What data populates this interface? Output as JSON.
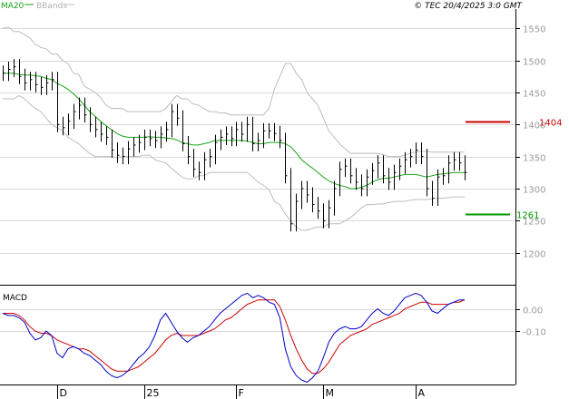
{
  "chart_data": [
    {
      "type": "line",
      "panel": "price",
      "legend": [
        {
          "name": "MA20",
          "color": "#1aa31a"
        },
        {
          "name": "BBands",
          "color": "#b0b0b0"
        }
      ],
      "copyright": "© TEC 20/4/2025 3:0 GMT",
      "y_ticks": [
        "1550",
        "1500",
        "1450",
        "1400",
        "1350",
        "1300",
        "1250",
        "1200"
      ],
      "ylim": [
        1150,
        1580
      ],
      "x_labels": [
        "D",
        "25",
        "F",
        "M",
        "A"
      ],
      "x_label_index": [
        10,
        26,
        43,
        59,
        76
      ],
      "n_bars": 86,
      "close": [
        1480,
        1486,
        1490,
        1475,
        1465,
        1470,
        1462,
        1458,
        1465,
        1470,
        1400,
        1395,
        1405,
        1420,
        1430,
        1415,
        1400,
        1392,
        1385,
        1380,
        1360,
        1352,
        1350,
        1362,
        1368,
        1372,
        1380,
        1378,
        1375,
        1385,
        1392,
        1420,
        1410,
        1370,
        1350,
        1330,
        1325,
        1345,
        1350,
        1372,
        1380,
        1385,
        1378,
        1392,
        1385,
        1400,
        1370,
        1375,
        1390,
        1390,
        1386,
        1375,
        1320,
        1245,
        1280,
        1300,
        1290,
        1275,
        1265,
        1250,
        1270,
        1300,
        1330,
        1335,
        1320,
        1310,
        1300,
        1318,
        1328,
        1340,
        1320,
        1310,
        1325,
        1335,
        1345,
        1350,
        1360,
        1350,
        1300,
        1285,
        1318,
        1320,
        1340,
        1345,
        1340,
        1325
      ],
      "ma20": [
        1480,
        1480,
        1480,
        1478,
        1477,
        1477,
        1476,
        1475,
        1472,
        1470,
        1464,
        1460,
        1455,
        1448,
        1440,
        1430,
        1420,
        1413,
        1405,
        1398,
        1392,
        1386,
        1382,
        1380,
        1380,
        1380,
        1380,
        1381,
        1380,
        1380,
        1379,
        1378,
        1376,
        1372,
        1370,
        1368,
        1368,
        1370,
        1372,
        1375,
        1375,
        1375,
        1375,
        1375,
        1375,
        1374,
        1372,
        1370,
        1370,
        1372,
        1372,
        1372,
        1370,
        1365,
        1356,
        1345,
        1338,
        1332,
        1325,
        1318,
        1312,
        1308,
        1305,
        1303,
        1300,
        1300,
        1302,
        1305,
        1310,
        1314,
        1316,
        1316,
        1318,
        1320,
        1322,
        1322,
        1322,
        1320,
        1318,
        1320,
        1322,
        1323,
        1324,
        1325,
        1325,
        1325
      ],
      "bb_upper": [
        1550,
        1552,
        1545,
        1545,
        1540,
        1535,
        1525,
        1520,
        1518,
        1510,
        1510,
        1500,
        1495,
        1480,
        1478,
        1460,
        1455,
        1450,
        1442,
        1430,
        1425,
        1425,
        1425,
        1420,
        1420,
        1420,
        1420,
        1420,
        1420,
        1420,
        1425,
        1435,
        1445,
        1440,
        1440,
        1432,
        1430,
        1425,
        1420,
        1420,
        1418,
        1418,
        1415,
        1415,
        1415,
        1415,
        1415,
        1415,
        1415,
        1425,
        1455,
        1475,
        1495,
        1495,
        1480,
        1470,
        1450,
        1440,
        1430,
        1410,
        1390,
        1380,
        1370,
        1362,
        1355,
        1355,
        1355,
        1355,
        1355,
        1355,
        1353,
        1350,
        1350,
        1350,
        1352,
        1355,
        1357,
        1358,
        1358,
        1357,
        1357,
        1357,
        1357,
        1357,
        1357,
        1357
      ],
      "bb_lower": [
        1440,
        1440,
        1440,
        1445,
        1440,
        1432,
        1425,
        1420,
        1410,
        1400,
        1395,
        1390,
        1380,
        1375,
        1370,
        1362,
        1355,
        1350,
        1350,
        1350,
        1350,
        1348,
        1350,
        1350,
        1350,
        1350,
        1352,
        1352,
        1345,
        1342,
        1340,
        1332,
        1325,
        1318,
        1315,
        1315,
        1320,
        1320,
        1325,
        1325,
        1325,
        1325,
        1325,
        1325,
        1325,
        1325,
        1318,
        1310,
        1305,
        1298,
        1280,
        1275,
        1260,
        1250,
        1240,
        1235,
        1235,
        1238,
        1240,
        1240,
        1245,
        1245,
        1245,
        1250,
        1255,
        1262,
        1270,
        1275,
        1275,
        1276,
        1276,
        1278,
        1280,
        1280,
        1280,
        1282,
        1283,
        1283,
        1283,
        1284,
        1285,
        1285,
        1286,
        1287,
        1287,
        1287
      ],
      "levels": [
        {
          "value": "1404",
          "color": "#cc0000"
        },
        {
          "value": "1261",
          "color": "#009900"
        }
      ]
    },
    {
      "type": "line",
      "panel": "macd",
      "title": "MACD",
      "y_ticks": [
        "0.00",
        "-0.10"
      ],
      "ylim": [
        -0.34,
        0.1
      ],
      "macd": [
        -0.02,
        -0.03,
        -0.03,
        -0.04,
        -0.06,
        -0.11,
        -0.14,
        -0.13,
        -0.1,
        -0.12,
        -0.2,
        -0.22,
        -0.18,
        -0.17,
        -0.18,
        -0.2,
        -0.21,
        -0.23,
        -0.25,
        -0.28,
        -0.3,
        -0.31,
        -0.3,
        -0.28,
        -0.25,
        -0.22,
        -0.2,
        -0.17,
        -0.12,
        -0.05,
        -0.02,
        -0.06,
        -0.1,
        -0.13,
        -0.15,
        -0.13,
        -0.12,
        -0.1,
        -0.08,
        -0.05,
        -0.02,
        0.0,
        0.02,
        0.04,
        0.06,
        0.07,
        0.05,
        0.06,
        0.05,
        0.03,
        0.02,
        -0.04,
        -0.18,
        -0.26,
        -0.3,
        -0.32,
        -0.33,
        -0.31,
        -0.28,
        -0.22,
        -0.15,
        -0.11,
        -0.09,
        -0.08,
        -0.09,
        -0.09,
        -0.08,
        -0.05,
        -0.02,
        0.0,
        -0.02,
        -0.03,
        -0.01,
        0.02,
        0.05,
        0.06,
        0.07,
        0.06,
        0.03,
        -0.01,
        -0.02,
        0.0,
        0.02,
        0.03,
        0.04,
        0.04
      ],
      "signal": [
        -0.02,
        -0.02,
        -0.02,
        -0.03,
        -0.05,
        -0.08,
        -0.1,
        -0.11,
        -0.11,
        -0.12,
        -0.14,
        -0.15,
        -0.16,
        -0.17,
        -0.18,
        -0.18,
        -0.19,
        -0.21,
        -0.23,
        -0.25,
        -0.27,
        -0.28,
        -0.28,
        -0.28,
        -0.27,
        -0.26,
        -0.24,
        -0.22,
        -0.2,
        -0.17,
        -0.14,
        -0.12,
        -0.11,
        -0.12,
        -0.12,
        -0.12,
        -0.12,
        -0.11,
        -0.1,
        -0.09,
        -0.07,
        -0.05,
        -0.04,
        -0.02,
        0.0,
        0.02,
        0.03,
        0.04,
        0.04,
        0.04,
        0.04,
        0.01,
        -0.05,
        -0.12,
        -0.18,
        -0.23,
        -0.27,
        -0.29,
        -0.29,
        -0.27,
        -0.24,
        -0.2,
        -0.16,
        -0.14,
        -0.12,
        -0.11,
        -0.1,
        -0.09,
        -0.07,
        -0.06,
        -0.05,
        -0.04,
        -0.03,
        -0.02,
        0.0,
        0.01,
        0.02,
        0.03,
        0.03,
        0.02,
        0.02,
        0.02,
        0.02,
        0.03,
        0.03,
        0.04
      ]
    }
  ]
}
